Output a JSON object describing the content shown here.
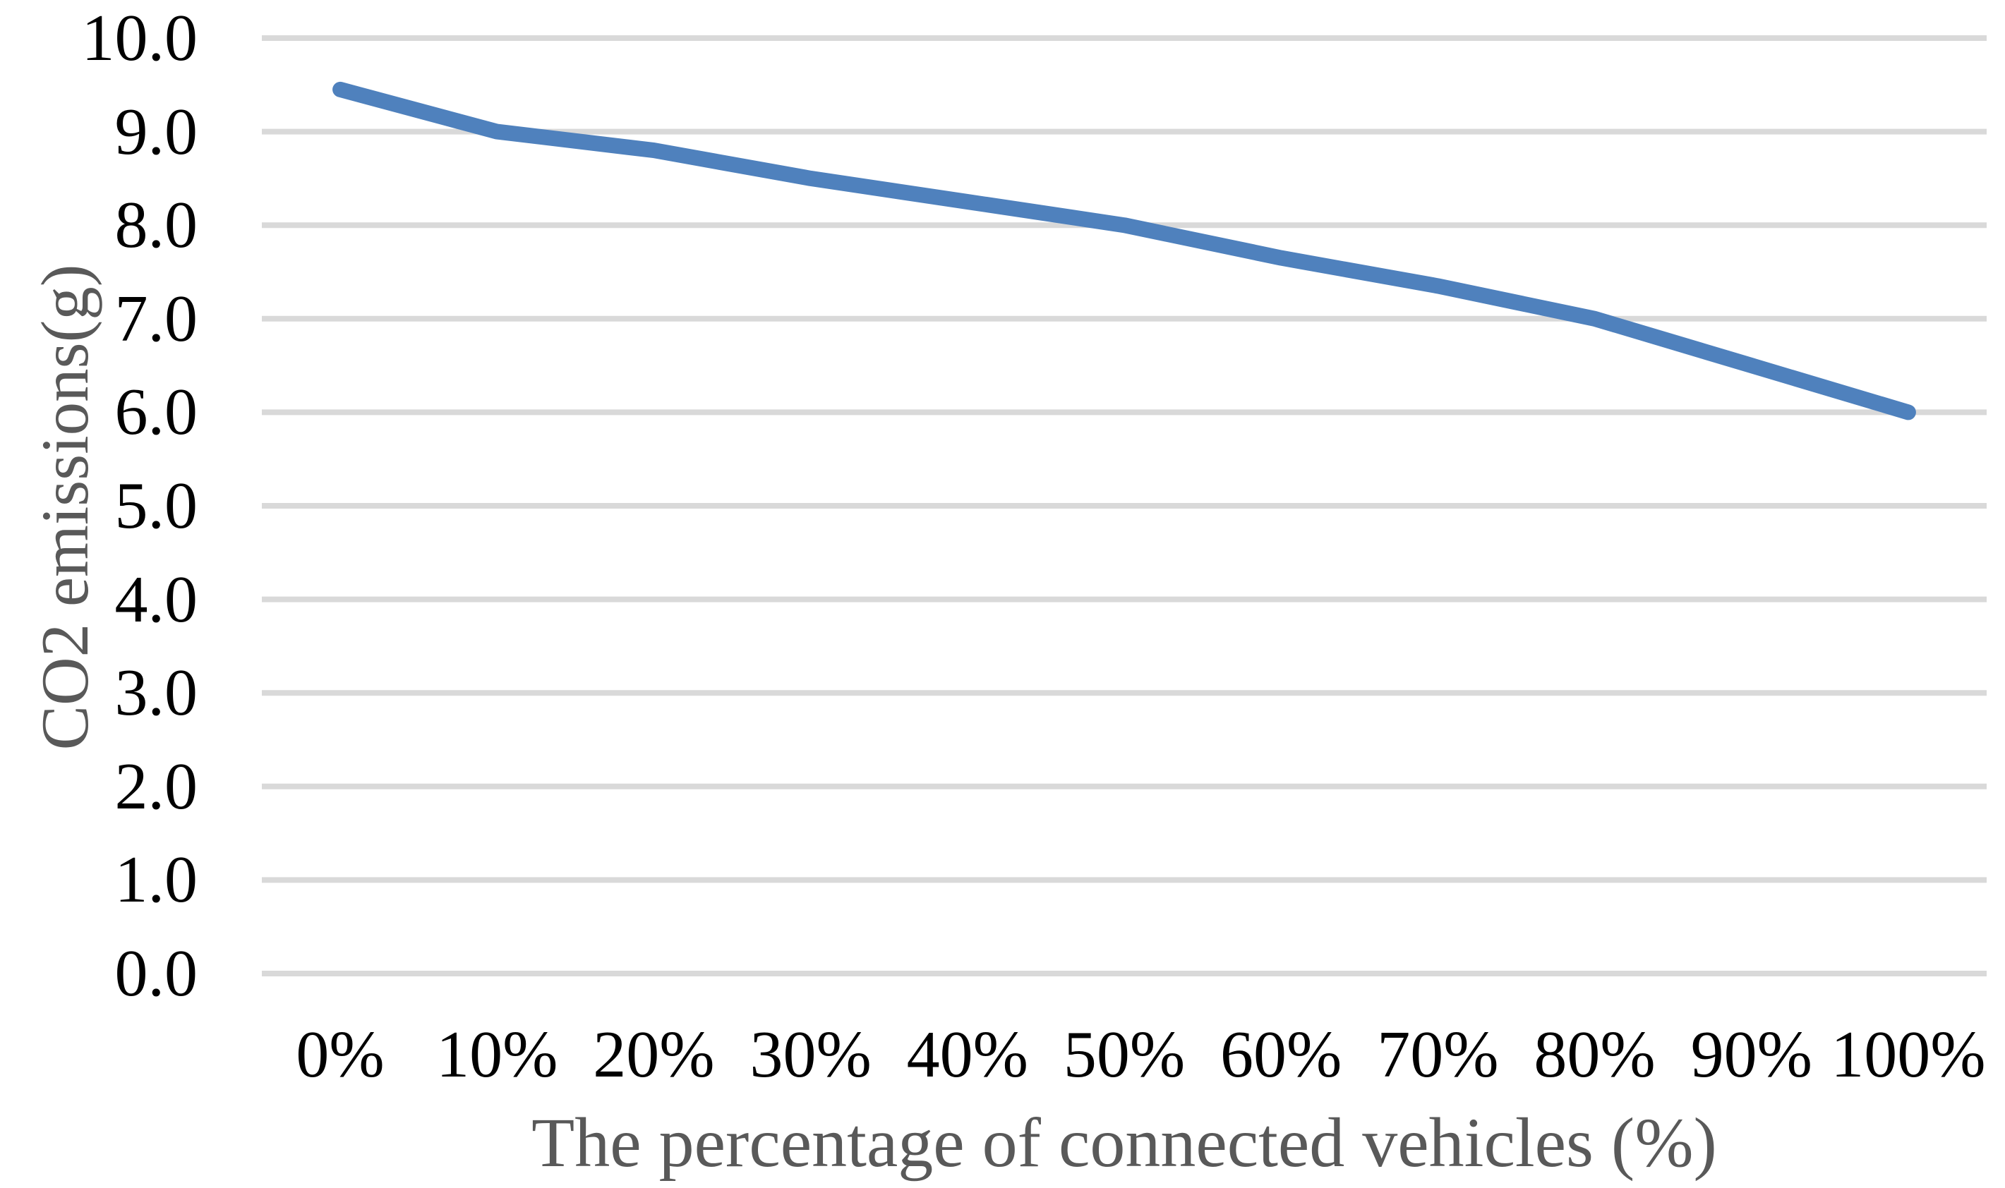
{
  "chart_data": {
    "type": "line",
    "title": "",
    "xlabel": "The percentage of connected vehicles (%)",
    "ylabel": "CO2 emissions(g)",
    "categories": [
      "0%",
      "10%",
      "20%",
      "30%",
      "40%",
      "50%",
      "60%",
      "70%",
      "80%",
      "90%",
      "100%"
    ],
    "series": [
      {
        "name": "CO2 emissions",
        "values": [
          9.45,
          9.0,
          8.8,
          8.5,
          8.25,
          8.0,
          7.65,
          7.35,
          7.0,
          6.5,
          6.0
        ]
      }
    ],
    "ylim": [
      0.0,
      10.0
    ],
    "ytick_step": 1.0,
    "ytick_labels": [
      "0.0",
      "1.0",
      "2.0",
      "3.0",
      "4.0",
      "5.0",
      "6.0",
      "7.0",
      "8.0",
      "9.0",
      "10.0"
    ],
    "grid": "horizontal-only",
    "legend": "none",
    "colors": {
      "line": "#4F81BD",
      "gridline": "#D9D9D9",
      "tick_label": "#000000",
      "axis_title": "#595959"
    }
  }
}
